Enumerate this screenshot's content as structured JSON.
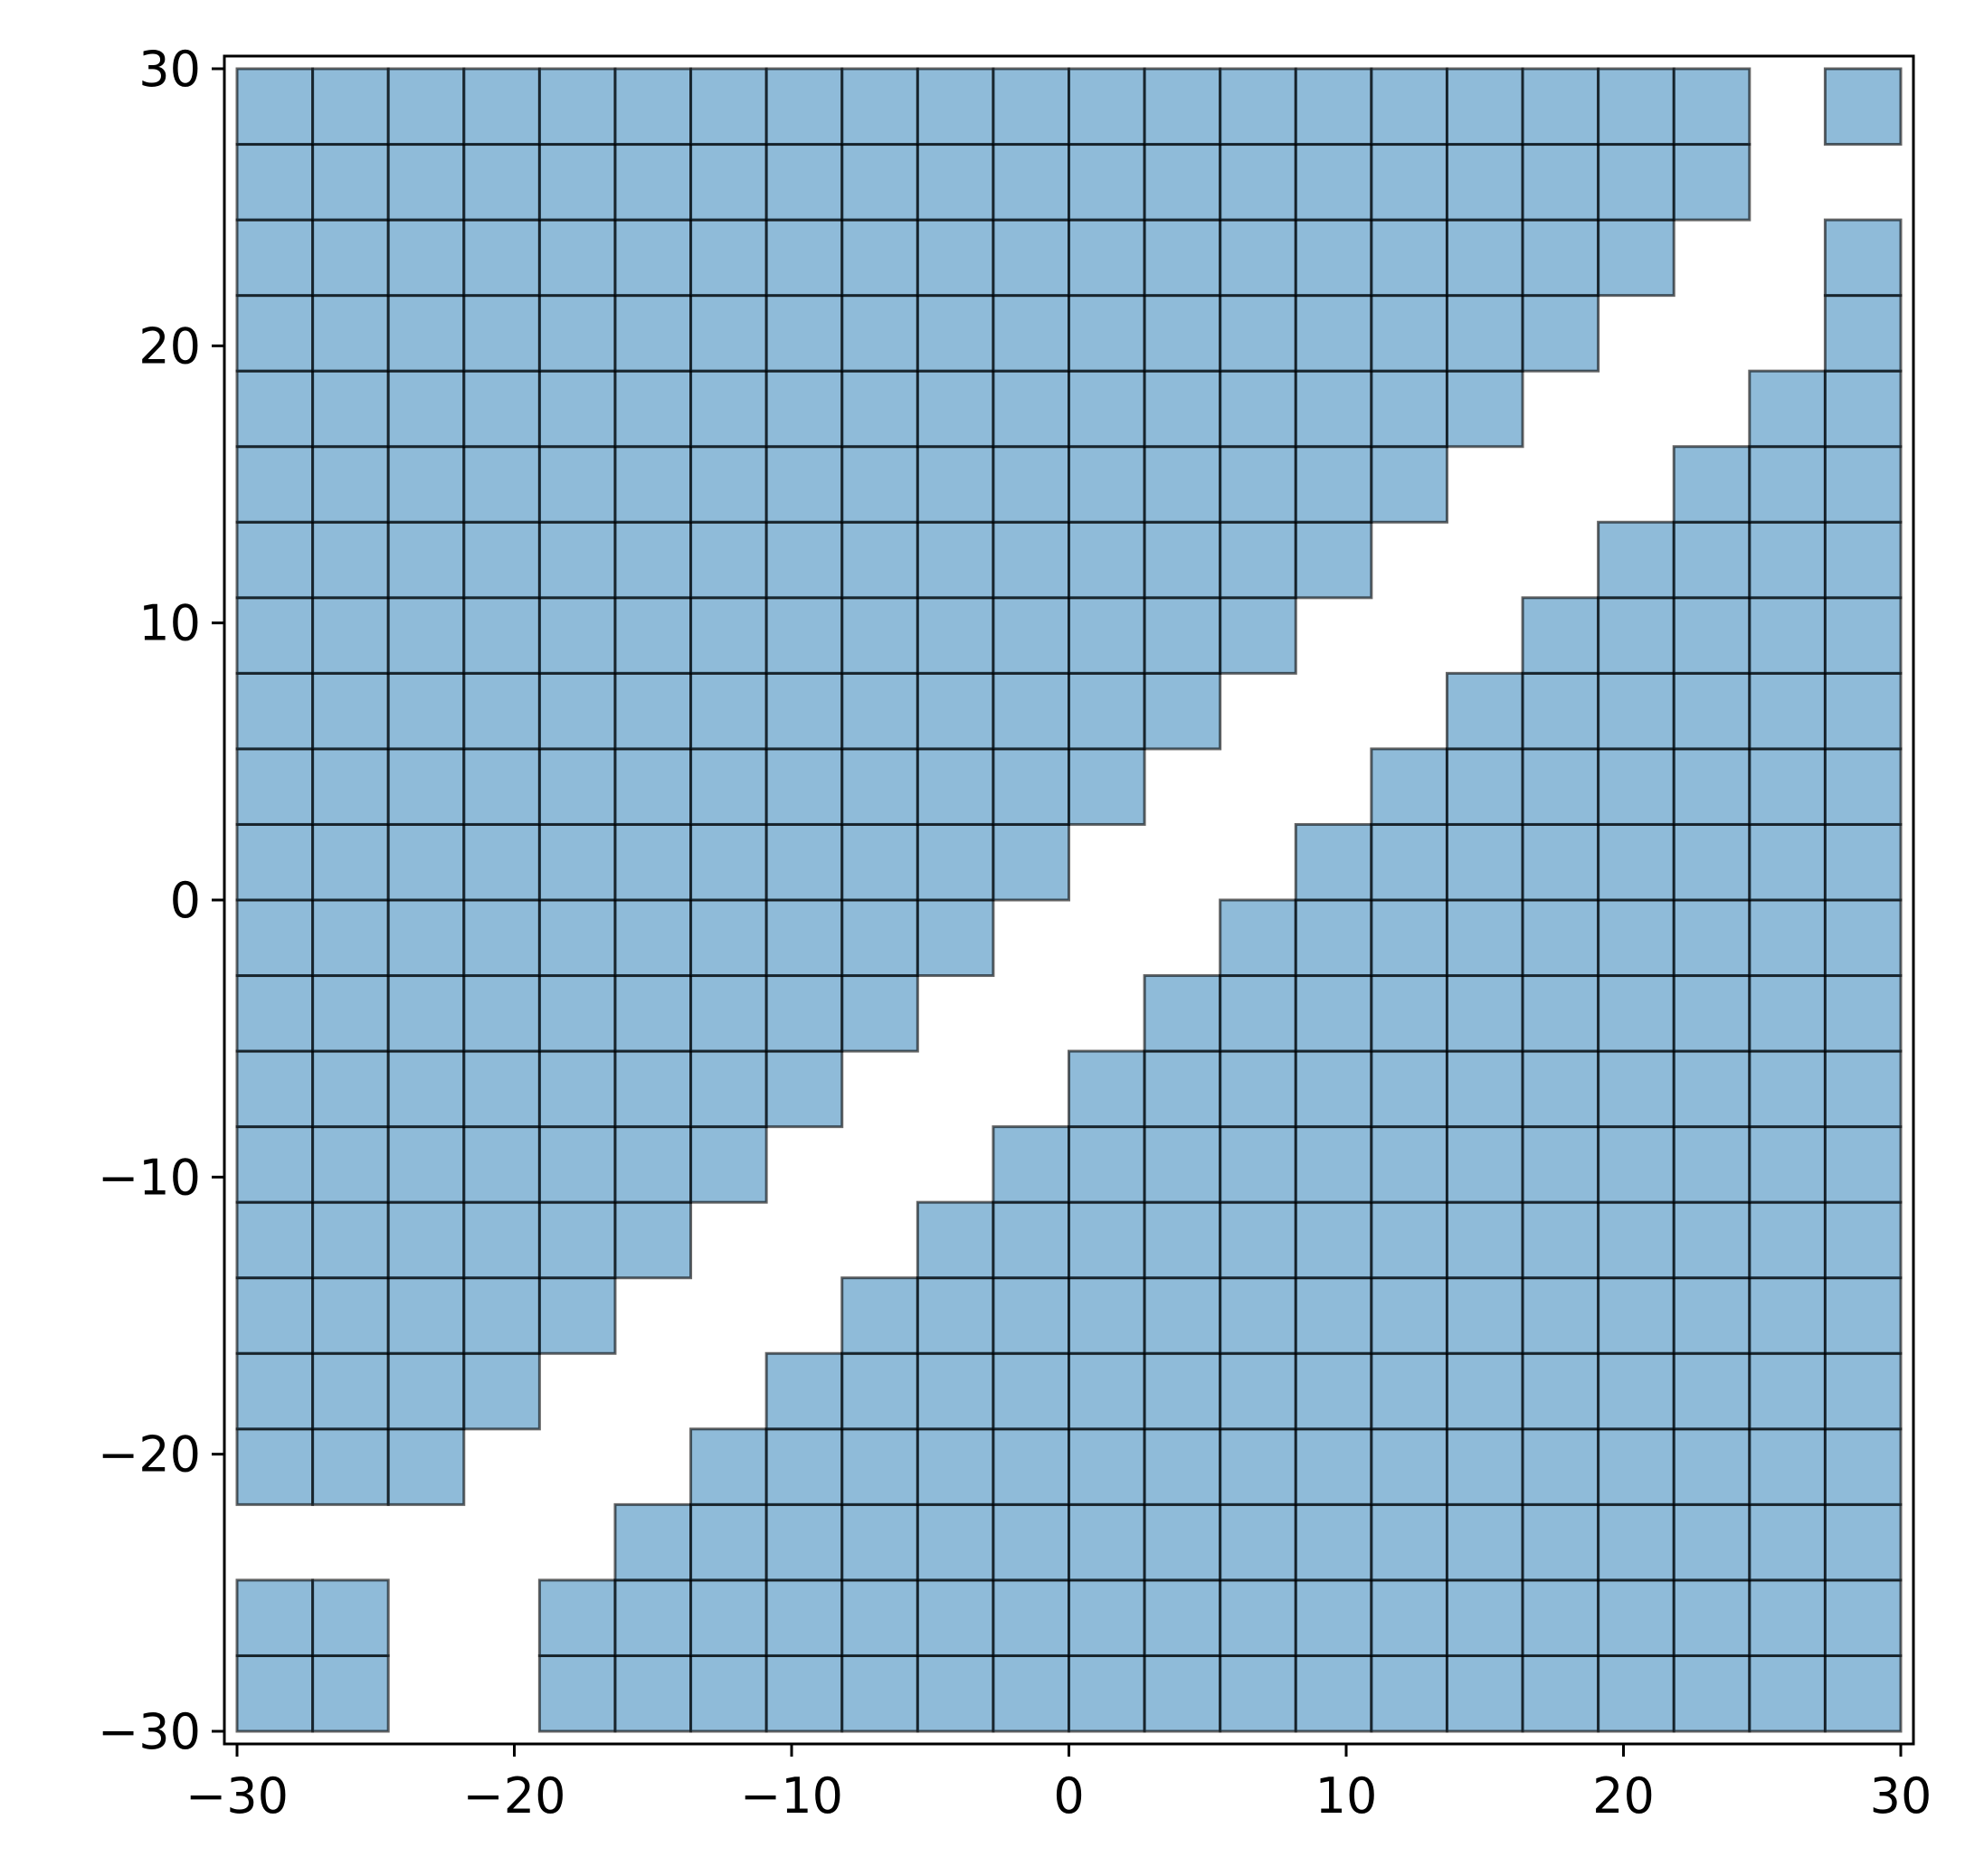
{
  "chart_data": {
    "type": "heatmap",
    "title": "",
    "xlabel": "",
    "ylabel": "",
    "xlim": [
      -30,
      30
    ],
    "ylim": [
      -30,
      30
    ],
    "xticks": [
      -30,
      -20,
      -10,
      0,
      10,
      20,
      30
    ],
    "yticks": [
      -30,
      -20,
      -10,
      0,
      10,
      20,
      30
    ],
    "xtick_labels": [
      "−30",
      "−20",
      "−10",
      "0",
      "10",
      "20",
      "30"
    ],
    "ytick_labels": [
      "−30",
      "−20",
      "−10",
      "0",
      "10",
      "20",
      "30"
    ],
    "grid": false,
    "legend": "none",
    "cell_size": 2.727,
    "n_rows": 22,
    "n_cols": 22,
    "row_order": "bottom-to-top",
    "description_of_values": "1 = filled cell, 0 = empty cell",
    "cells": [
      [
        1,
        1,
        0,
        0,
        1,
        1,
        1,
        1,
        1,
        1,
        1,
        1,
        1,
        1,
        1,
        1,
        1,
        1,
        1,
        1,
        1,
        1
      ],
      [
        1,
        1,
        0,
        0,
        1,
        1,
        1,
        1,
        1,
        1,
        1,
        1,
        1,
        1,
        1,
        1,
        1,
        1,
        1,
        1,
        1,
        1
      ],
      [
        0,
        0,
        0,
        0,
        0,
        1,
        1,
        1,
        1,
        1,
        1,
        1,
        1,
        1,
        1,
        1,
        1,
        1,
        1,
        1,
        1,
        1
      ],
      [
        1,
        1,
        1,
        0,
        0,
        0,
        1,
        1,
        1,
        1,
        1,
        1,
        1,
        1,
        1,
        1,
        1,
        1,
        1,
        1,
        1,
        1
      ],
      [
        1,
        1,
        1,
        1,
        0,
        0,
        0,
        1,
        1,
        1,
        1,
        1,
        1,
        1,
        1,
        1,
        1,
        1,
        1,
        1,
        1,
        1
      ],
      [
        1,
        1,
        1,
        1,
        1,
        0,
        0,
        0,
        1,
        1,
        1,
        1,
        1,
        1,
        1,
        1,
        1,
        1,
        1,
        1,
        1,
        1
      ],
      [
        1,
        1,
        1,
        1,
        1,
        1,
        0,
        0,
        0,
        1,
        1,
        1,
        1,
        1,
        1,
        1,
        1,
        1,
        1,
        1,
        1,
        1
      ],
      [
        1,
        1,
        1,
        1,
        1,
        1,
        1,
        0,
        0,
        0,
        1,
        1,
        1,
        1,
        1,
        1,
        1,
        1,
        1,
        1,
        1,
        1
      ],
      [
        1,
        1,
        1,
        1,
        1,
        1,
        1,
        1,
        0,
        0,
        0,
        1,
        1,
        1,
        1,
        1,
        1,
        1,
        1,
        1,
        1,
        1
      ],
      [
        1,
        1,
        1,
        1,
        1,
        1,
        1,
        1,
        1,
        0,
        0,
        0,
        1,
        1,
        1,
        1,
        1,
        1,
        1,
        1,
        1,
        1
      ],
      [
        1,
        1,
        1,
        1,
        1,
        1,
        1,
        1,
        1,
        1,
        0,
        0,
        0,
        1,
        1,
        1,
        1,
        1,
        1,
        1,
        1,
        1
      ],
      [
        1,
        1,
        1,
        1,
        1,
        1,
        1,
        1,
        1,
        1,
        1,
        0,
        0,
        0,
        1,
        1,
        1,
        1,
        1,
        1,
        1,
        1
      ],
      [
        1,
        1,
        1,
        1,
        1,
        1,
        1,
        1,
        1,
        1,
        1,
        1,
        0,
        0,
        0,
        1,
        1,
        1,
        1,
        1,
        1,
        1
      ],
      [
        1,
        1,
        1,
        1,
        1,
        1,
        1,
        1,
        1,
        1,
        1,
        1,
        1,
        0,
        0,
        0,
        1,
        1,
        1,
        1,
        1,
        1
      ],
      [
        1,
        1,
        1,
        1,
        1,
        1,
        1,
        1,
        1,
        1,
        1,
        1,
        1,
        1,
        0,
        0,
        0,
        1,
        1,
        1,
        1,
        1
      ],
      [
        1,
        1,
        1,
        1,
        1,
        1,
        1,
        1,
        1,
        1,
        1,
        1,
        1,
        1,
        1,
        0,
        0,
        0,
        1,
        1,
        1,
        1
      ],
      [
        1,
        1,
        1,
        1,
        1,
        1,
        1,
        1,
        1,
        1,
        1,
        1,
        1,
        1,
        1,
        1,
        0,
        0,
        0,
        1,
        1,
        1
      ],
      [
        1,
        1,
        1,
        1,
        1,
        1,
        1,
        1,
        1,
        1,
        1,
        1,
        1,
        1,
        1,
        1,
        1,
        0,
        0,
        0,
        1,
        1
      ],
      [
        1,
        1,
        1,
        1,
        1,
        1,
        1,
        1,
        1,
        1,
        1,
        1,
        1,
        1,
        1,
        1,
        1,
        1,
        0,
        0,
        0,
        1
      ],
      [
        1,
        1,
        1,
        1,
        1,
        1,
        1,
        1,
        1,
        1,
        1,
        1,
        1,
        1,
        1,
        1,
        1,
        1,
        1,
        0,
        0,
        1
      ],
      [
        1,
        1,
        1,
        1,
        1,
        1,
        1,
        1,
        1,
        1,
        1,
        1,
        1,
        1,
        1,
        1,
        1,
        1,
        1,
        1,
        0,
        0
      ],
      [
        1,
        1,
        1,
        1,
        1,
        1,
        1,
        1,
        1,
        1,
        1,
        1,
        1,
        1,
        1,
        1,
        1,
        1,
        1,
        1,
        0,
        1
      ]
    ],
    "colors": {
      "cell_fill": "#1f77b4",
      "cell_fill_opacity": 0.5,
      "cell_edge": "#000000",
      "axes_edge": "#000000",
      "background": "#ffffff"
    }
  }
}
